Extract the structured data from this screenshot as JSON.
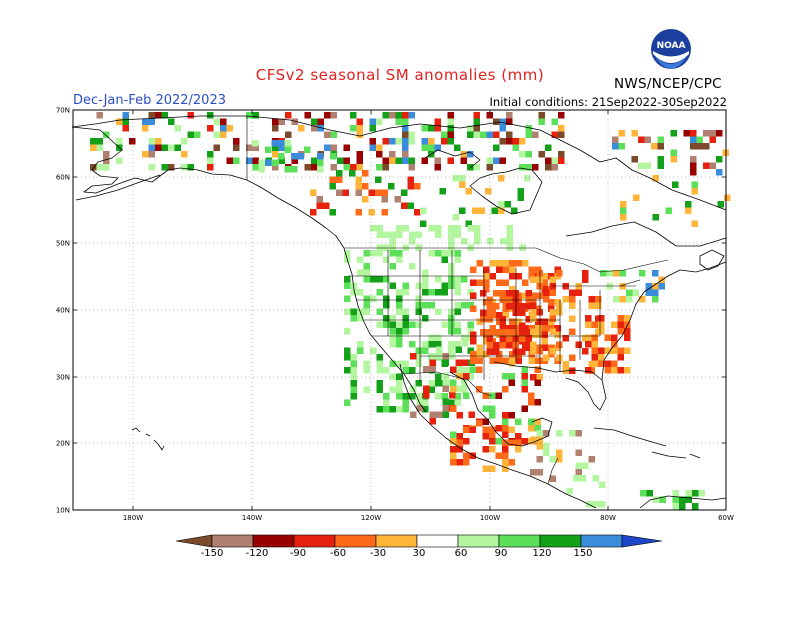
{
  "title": "CFSv2 seasonal SM anomalies (mm)",
  "period": "Dec-Jan-Feb 2022/2023",
  "initial_conditions": "Initial conditions: 21Sep2022-30Sep2022",
  "agency": "NWS/NCEP/CPC",
  "logo_text": "NOAA",
  "map": {
    "lat_labels": [
      "70N",
      "60N",
      "50N",
      "40N",
      "30N",
      "20N",
      "10N"
    ],
    "lon_labels": [
      "180W",
      "140W",
      "120W",
      "100W",
      "80W",
      "60W"
    ]
  },
  "legend": {
    "labels": [
      "-150",
      "-120",
      "-90",
      "-60",
      "-30",
      "30",
      "60",
      "90",
      "120",
      "150"
    ],
    "colors": {
      "lt150": "#7a4a2a",
      "r120_150": "#b08070",
      "r90_120": "#990000",
      "r60_90": "#e6220e",
      "r30_60": "#ff6a1a",
      "r0_30": "#ffb43a",
      "neutral": "#ffffff",
      "p30_60": "#b4f5a0",
      "p60_90": "#5ce05a",
      "p90_120": "#14a018",
      "p120_150": "#3c8cdc",
      "gt150": "#1e46c8"
    }
  }
}
